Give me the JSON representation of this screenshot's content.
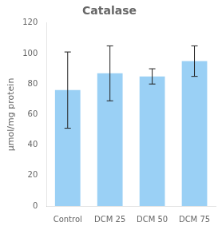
{
  "chart_data": {
    "type": "bar",
    "title": "Catalase",
    "ylabel": "μmol/mg protein",
    "categories": [
      "Control",
      "DCM 25",
      "DCM 50",
      "DCM 75"
    ],
    "values": [
      76,
      87,
      85,
      95
    ],
    "errors": [
      25,
      18,
      5,
      10
    ],
    "ylim": [
      0,
      120
    ],
    "yticks": [
      0,
      20,
      40,
      60,
      80,
      100,
      120
    ],
    "grid": false
  }
}
